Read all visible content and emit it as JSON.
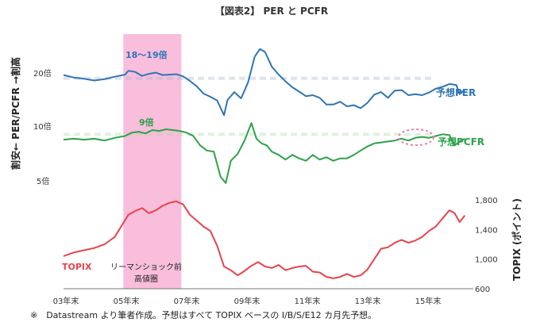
{
  "chart_data": {
    "type": "line",
    "title": "【図表2】 PER と PCFR",
    "y_left_label": "割安← PER/PCFR →割高",
    "y_left_ticks": [
      "20倍",
      "10倍",
      "5倍"
    ],
    "y_right_label": "TOPIX (ポイント)",
    "y_right_ticks": [
      "1,800",
      "1,400",
      "1,000",
      "600"
    ],
    "y_right_range": [
      600,
      1800
    ],
    "x_ticks": [
      "03年末",
      "05年末",
      "07年末",
      "09年末",
      "11年末",
      "13年末",
      "15年末"
    ],
    "x_range": [
      2004.0,
      2016.0
    ],
    "highlight": {
      "label_line1": "リーマンショック前",
      "label_line2": "高値圏",
      "x_start": 2005.75,
      "x_end": 2007.45,
      "color": "#f7a8cf"
    },
    "annotations": {
      "per_peak_label": "18～19倍",
      "pcfr_peak_label": "9倍"
    },
    "series": [
      {
        "name": "予想PER",
        "color": "#2e75b6",
        "ref_label": "18～19倍",
        "points": [
          [
            2004.0,
            19.3
          ],
          [
            2004.3,
            18.7
          ],
          [
            2004.6,
            18.4
          ],
          [
            2004.9,
            18.0
          ],
          [
            2005.2,
            18.3
          ],
          [
            2005.5,
            18.9
          ],
          [
            2005.8,
            19.4
          ],
          [
            2005.9,
            20.4
          ],
          [
            2006.1,
            20.1
          ],
          [
            2006.3,
            19.1
          ],
          [
            2006.5,
            19.6
          ],
          [
            2006.7,
            19.9
          ],
          [
            2006.9,
            19.3
          ],
          [
            2007.1,
            19.4
          ],
          [
            2007.3,
            19.5
          ],
          [
            2007.5,
            19.0
          ],
          [
            2007.7,
            17.9
          ],
          [
            2007.9,
            16.7
          ],
          [
            2008.1,
            15.2
          ],
          [
            2008.3,
            14.6
          ],
          [
            2008.5,
            13.9
          ],
          [
            2008.7,
            11.5
          ],
          [
            2008.8,
            14.0
          ],
          [
            2009.0,
            15.5
          ],
          [
            2009.2,
            14.3
          ],
          [
            2009.4,
            17.5
          ],
          [
            2009.6,
            24.5
          ],
          [
            2009.75,
            27.0
          ],
          [
            2009.9,
            26.0
          ],
          [
            2010.1,
            21.5
          ],
          [
            2010.3,
            19.4
          ],
          [
            2010.5,
            17.8
          ],
          [
            2010.7,
            16.5
          ],
          [
            2010.9,
            15.6
          ],
          [
            2011.1,
            14.7
          ],
          [
            2011.3,
            14.9
          ],
          [
            2011.5,
            14.4
          ],
          [
            2011.7,
            13.2
          ],
          [
            2011.9,
            13.2
          ],
          [
            2012.1,
            13.7
          ],
          [
            2012.3,
            12.9
          ],
          [
            2012.5,
            13.1
          ],
          [
            2012.7,
            12.6
          ],
          [
            2012.9,
            13.5
          ],
          [
            2013.1,
            15.0
          ],
          [
            2013.3,
            15.5
          ],
          [
            2013.5,
            14.4
          ],
          [
            2013.7,
            15.8
          ],
          [
            2013.9,
            15.9
          ],
          [
            2014.1,
            14.9
          ],
          [
            2014.3,
            15.1
          ],
          [
            2014.5,
            14.9
          ],
          [
            2014.7,
            15.4
          ],
          [
            2014.9,
            16.2
          ],
          [
            2015.1,
            16.6
          ],
          [
            2015.3,
            17.2
          ],
          [
            2015.5,
            17.0
          ],
          [
            2015.6,
            15.1
          ],
          [
            2015.75,
            16.0
          ]
        ]
      },
      {
        "name": "予想PCFR",
        "color": "#2ca24a",
        "ref_label": "9倍",
        "points": [
          [
            2004.0,
            8.4
          ],
          [
            2004.3,
            8.5
          ],
          [
            2004.6,
            8.4
          ],
          [
            2004.9,
            8.5
          ],
          [
            2005.2,
            8.3
          ],
          [
            2005.5,
            8.6
          ],
          [
            2005.8,
            8.8
          ],
          [
            2006.0,
            9.2
          ],
          [
            2006.2,
            9.3
          ],
          [
            2006.4,
            9.1
          ],
          [
            2006.6,
            9.5
          ],
          [
            2006.8,
            9.4
          ],
          [
            2007.0,
            9.6
          ],
          [
            2007.2,
            9.5
          ],
          [
            2007.4,
            9.4
          ],
          [
            2007.6,
            9.2
          ],
          [
            2007.8,
            8.8
          ],
          [
            2008.0,
            7.8
          ],
          [
            2008.2,
            7.3
          ],
          [
            2008.4,
            7.2
          ],
          [
            2008.6,
            5.2
          ],
          [
            2008.75,
            4.8
          ],
          [
            2008.9,
            6.4
          ],
          [
            2009.1,
            7.0
          ],
          [
            2009.3,
            8.3
          ],
          [
            2009.5,
            10.4
          ],
          [
            2009.65,
            8.5
          ],
          [
            2009.8,
            8.0
          ],
          [
            2009.95,
            7.8
          ],
          [
            2010.1,
            7.2
          ],
          [
            2010.3,
            6.9
          ],
          [
            2010.5,
            6.5
          ],
          [
            2010.7,
            6.9
          ],
          [
            2010.9,
            6.6
          ],
          [
            2011.1,
            6.4
          ],
          [
            2011.3,
            6.9
          ],
          [
            2011.5,
            6.5
          ],
          [
            2011.7,
            6.7
          ],
          [
            2011.9,
            6.4
          ],
          [
            2012.1,
            6.6
          ],
          [
            2012.3,
            6.6
          ],
          [
            2012.5,
            6.9
          ],
          [
            2012.7,
            7.3
          ],
          [
            2012.9,
            7.7
          ],
          [
            2013.1,
            8.0
          ],
          [
            2013.3,
            8.1
          ],
          [
            2013.5,
            8.2
          ],
          [
            2013.7,
            8.3
          ],
          [
            2013.9,
            8.5
          ],
          [
            2014.1,
            8.3
          ],
          [
            2014.3,
            8.6
          ],
          [
            2014.5,
            8.7
          ],
          [
            2014.7,
            8.6
          ],
          [
            2014.9,
            8.8
          ],
          [
            2015.1,
            9.0
          ],
          [
            2015.3,
            8.9
          ],
          [
            2015.45,
            7.8
          ],
          [
            2015.6,
            8.2
          ],
          [
            2015.75,
            8.5
          ]
        ]
      },
      {
        "name": "TOPIX",
        "color": "#e8434d",
        "points": [
          [
            2004.0,
            1040
          ],
          [
            2004.3,
            1090
          ],
          [
            2004.6,
            1120
          ],
          [
            2004.9,
            1150
          ],
          [
            2005.2,
            1200
          ],
          [
            2005.5,
            1300
          ],
          [
            2005.7,
            1450
          ],
          [
            2005.9,
            1600
          ],
          [
            2006.1,
            1650
          ],
          [
            2006.3,
            1690
          ],
          [
            2006.5,
            1620
          ],
          [
            2006.7,
            1660
          ],
          [
            2006.9,
            1720
          ],
          [
            2007.1,
            1760
          ],
          [
            2007.3,
            1780
          ],
          [
            2007.5,
            1740
          ],
          [
            2007.7,
            1600
          ],
          [
            2007.9,
            1520
          ],
          [
            2008.1,
            1440
          ],
          [
            2008.3,
            1380
          ],
          [
            2008.5,
            1180
          ],
          [
            2008.7,
            900
          ],
          [
            2008.9,
            850
          ],
          [
            2009.1,
            780
          ],
          [
            2009.3,
            840
          ],
          [
            2009.5,
            910
          ],
          [
            2009.7,
            960
          ],
          [
            2009.9,
            900
          ],
          [
            2010.1,
            880
          ],
          [
            2010.3,
            920
          ],
          [
            2010.5,
            850
          ],
          [
            2010.7,
            880
          ],
          [
            2010.9,
            900
          ],
          [
            2011.1,
            910
          ],
          [
            2011.3,
            830
          ],
          [
            2011.5,
            820
          ],
          [
            2011.7,
            760
          ],
          [
            2011.9,
            740
          ],
          [
            2012.1,
            760
          ],
          [
            2012.3,
            800
          ],
          [
            2012.5,
            760
          ],
          [
            2012.7,
            780
          ],
          [
            2012.9,
            860
          ],
          [
            2013.1,
            1000
          ],
          [
            2013.3,
            1140
          ],
          [
            2013.5,
            1160
          ],
          [
            2013.7,
            1220
          ],
          [
            2013.9,
            1260
          ],
          [
            2014.1,
            1220
          ],
          [
            2014.3,
            1250
          ],
          [
            2014.5,
            1300
          ],
          [
            2014.7,
            1380
          ],
          [
            2014.9,
            1440
          ],
          [
            2015.1,
            1550
          ],
          [
            2015.3,
            1660
          ],
          [
            2015.45,
            1620
          ],
          [
            2015.6,
            1500
          ],
          [
            2015.75,
            1590
          ]
        ]
      }
    ],
    "footnote": "※　Datastream より筆者作成。予想はすべて TOPIX ベースの I/B/S/E12 カ月先予想。"
  }
}
